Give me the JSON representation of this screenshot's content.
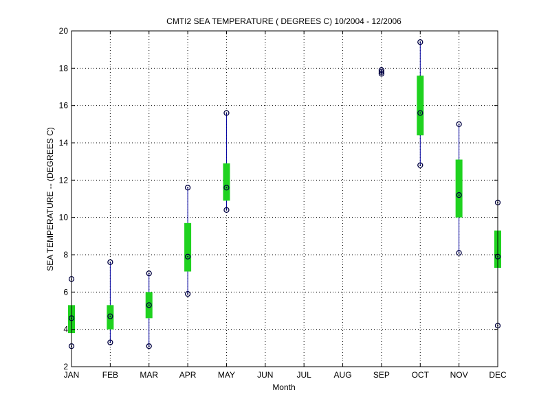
{
  "chart_data": {
    "type": "box",
    "title": "CMTI2  SEA TEMPERATURE ( DEGREES C) 10/2004 - 12/2006",
    "xlabel": "Month",
    "ylabel": "SEA TEMPERATURE -- (DEGREES C)",
    "ylim": [
      2,
      20
    ],
    "yticks": [
      2,
      4,
      6,
      8,
      10,
      12,
      14,
      16,
      18,
      20
    ],
    "grid": true,
    "categories": [
      "JAN",
      "FEB",
      "MAR",
      "APR",
      "MAY",
      "JUN",
      "JUL",
      "AUG",
      "SEP",
      "OCT",
      "NOV",
      "DEC"
    ],
    "min": [
      3.1,
      3.3,
      3.1,
      5.9,
      10.4,
      null,
      null,
      null,
      17.7,
      12.8,
      8.1,
      4.2
    ],
    "q1": [
      3.8,
      4.0,
      4.6,
      7.1,
      10.9,
      null,
      null,
      null,
      null,
      14.4,
      10.0,
      7.3
    ],
    "median": [
      4.6,
      4.7,
      5.3,
      7.9,
      11.6,
      null,
      null,
      null,
      17.8,
      15.6,
      11.2,
      7.9
    ],
    "q3": [
      5.3,
      5.3,
      6.0,
      9.7,
      12.9,
      null,
      null,
      null,
      null,
      17.6,
      13.1,
      9.3
    ],
    "max": [
      6.7,
      7.6,
      7.0,
      11.6,
      15.6,
      null,
      null,
      null,
      17.9,
      19.4,
      15.0,
      10.8
    ],
    "colors": {
      "box": "#1fd21f",
      "whisker": "#0000a0",
      "marker": "#000040",
      "grid": "#000000"
    }
  }
}
